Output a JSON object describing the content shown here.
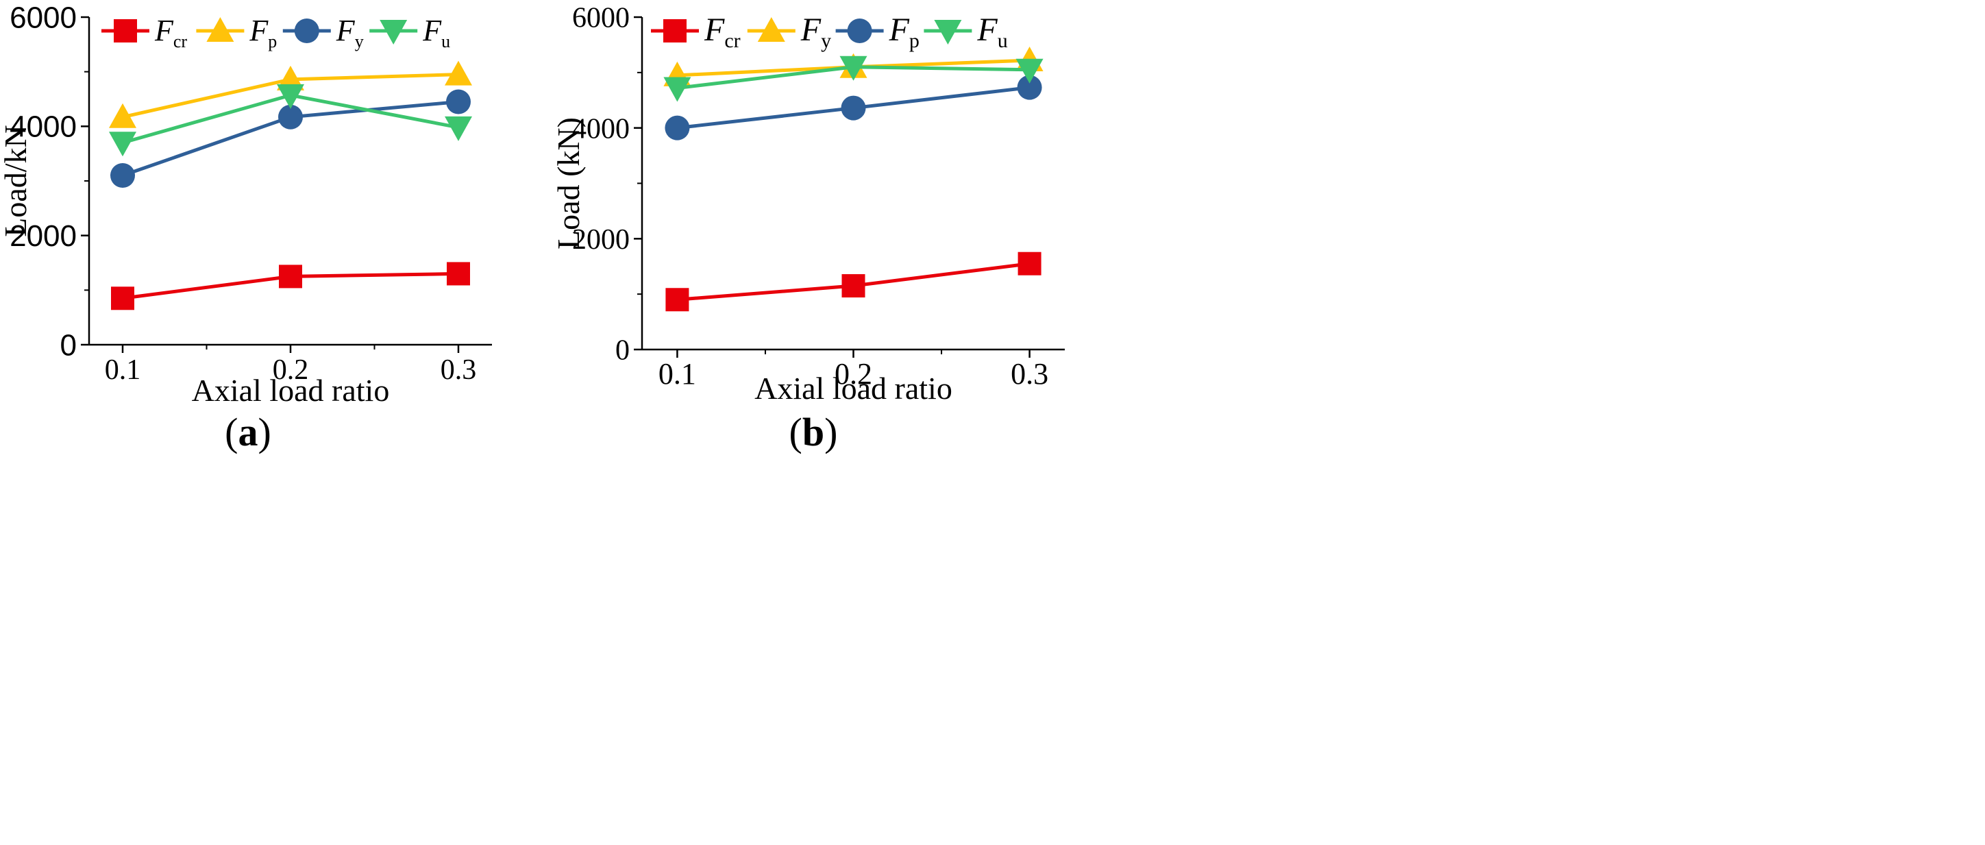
{
  "colors": {
    "Fcr": "#e8000b",
    "Fp": "#ffc20a",
    "Fy": "#2f5f98",
    "Fu": "#3cc46e",
    "axis": "#000000"
  },
  "chart_data": [
    {
      "type": "line",
      "panel_label": "(a)",
      "panel_letter": "a",
      "xlabel": "Axial load ratio",
      "ylabel": "Load/kN",
      "x": [
        0.1,
        0.2,
        0.3
      ],
      "xticks": [
        "0.1",
        "0.2",
        "0.3"
      ],
      "yticks": [
        "0",
        "2000",
        "4000",
        "6000"
      ],
      "xlim": [
        0.08,
        0.32
      ],
      "ylim": [
        0,
        6000
      ],
      "legend_position": "top",
      "series": [
        {
          "name": "F",
          "subscript": "cr",
          "key": "Fcr",
          "marker": "square",
          "values": [
            850,
            1250,
            1300
          ]
        },
        {
          "name": "F",
          "subscript": "p",
          "key": "Fp",
          "marker": "triangle-up",
          "values": [
            4170,
            4860,
            4950
          ]
        },
        {
          "name": "F",
          "subscript": "y",
          "key": "Fy",
          "marker": "circle",
          "values": [
            3100,
            4170,
            4450
          ]
        },
        {
          "name": "F",
          "subscript": "u",
          "key": "Fu",
          "marker": "triangle-down",
          "values": [
            3700,
            4570,
            3980
          ]
        }
      ]
    },
    {
      "type": "line",
      "panel_label": "(b)",
      "panel_letter": "b",
      "xlabel": "Axial load ratio",
      "ylabel": "Load (kN)",
      "x": [
        0.1,
        0.2,
        0.3
      ],
      "xticks": [
        "0.1",
        "0.2",
        "0.3"
      ],
      "yticks": [
        "0",
        "2000",
        "4000",
        "6000"
      ],
      "xlim": [
        0.08,
        0.32
      ],
      "ylim": [
        0,
        6000
      ],
      "legend_position": "top",
      "series": [
        {
          "name": "F",
          "subscript": "cr",
          "key": "Fcr",
          "marker": "square",
          "values": [
            900,
            1150,
            1550
          ]
        },
        {
          "name": "F",
          "subscript": "y",
          "key": "Fp",
          "marker": "triangle-up",
          "values": [
            4950,
            5100,
            5220
          ]
        },
        {
          "name": "F",
          "subscript": "p",
          "key": "Fy",
          "marker": "circle",
          "values": [
            4000,
            4360,
            4730
          ]
        },
        {
          "name": "F",
          "subscript": "u",
          "key": "Fu",
          "marker": "triangle-down",
          "values": [
            4720,
            5100,
            5050
          ]
        }
      ]
    }
  ]
}
